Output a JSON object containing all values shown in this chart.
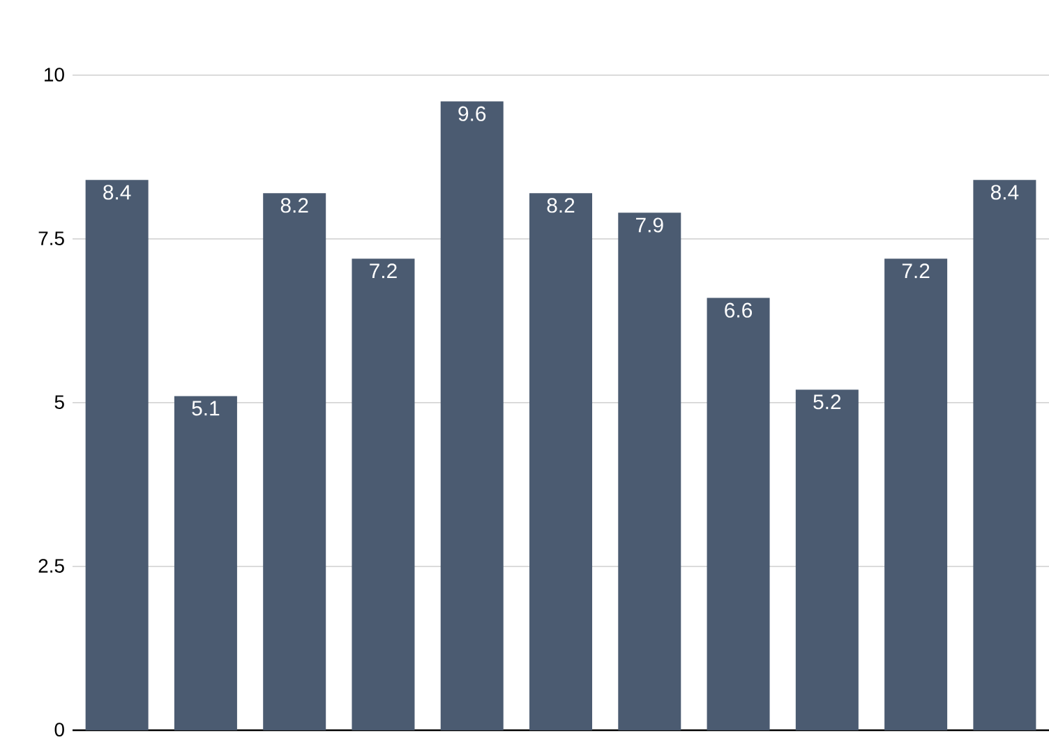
{
  "chart_data": {
    "type": "bar",
    "categories": [
      null,
      null,
      null,
      null,
      null,
      null,
      null,
      null,
      null,
      null,
      null
    ],
    "values": [
      8.4,
      5.1,
      8.2,
      7.2,
      9.6,
      8.2,
      7.9,
      6.6,
      5.2,
      7.2,
      8.4
    ],
    "color": "#4b5b71",
    "ylim": [
      0,
      10
    ],
    "yticks": [
      0,
      2.5,
      5,
      7.5,
      10
    ],
    "grid": "y",
    "data_labels": true
  }
}
